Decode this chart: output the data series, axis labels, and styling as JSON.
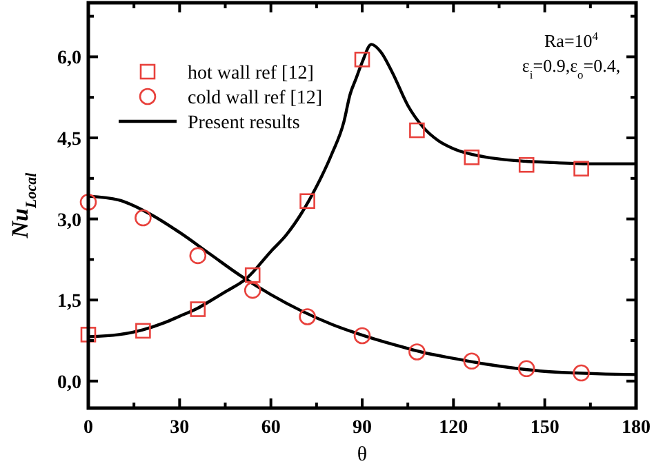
{
  "chart_data": {
    "type": "line",
    "xlabel": "θ",
    "ylabel": "Nu$_{Local}$",
    "annotations": [
      "Ra=10$^{4}$",
      "ε$_{i}$=0.9,ε$_{o}$=0.4,"
    ],
    "xlim": [
      0,
      180
    ],
    "ylim": [
      -0.5,
      7.0
    ],
    "xticks": [
      0,
      {
        "value": 15,
        "label": null
      },
      30,
      {
        "value": 45,
        "label": null
      },
      60,
      {
        "value": 75,
        "label": null
      },
      90,
      {
        "value": 105,
        "label": null
      },
      120,
      {
        "value": 135,
        "label": null
      },
      150,
      {
        "value": 165,
        "label": null
      },
      180
    ],
    "yticks": [
      {
        "value": 0,
        "label": "0,0"
      },
      {
        "value": 0.75,
        "label": null
      },
      {
        "value": 1.5,
        "label": "1,5"
      },
      {
        "value": 2.25,
        "label": null
      },
      {
        "value": 3,
        "label": "3,0"
      },
      {
        "value": 3.75,
        "label": null
      },
      {
        "value": 4.5,
        "label": "4,5"
      },
      {
        "value": 5.25,
        "label": null
      },
      {
        "value": 6,
        "label": "6,0"
      },
      {
        "value": 6.75,
        "label": null
      }
    ],
    "legend": "top left",
    "grid": false,
    "series": [
      {
        "name": "hot wall ref [12]",
        "type": "scatter",
        "marker": "square",
        "color": "#e8413c",
        "x": [
          0,
          18,
          36,
          54,
          72,
          90,
          108,
          126,
          144,
          162
        ],
        "values": [
          0.86,
          0.93,
          1.33,
          1.96,
          3.33,
          5.95,
          4.64,
          4.14,
          4.0,
          3.93
        ]
      },
      {
        "name": "cold wall ref [12]",
        "type": "scatter",
        "marker": "circle",
        "color": "#e8413c",
        "x": [
          0,
          18,
          36,
          54,
          72,
          90,
          108,
          126,
          144,
          162
        ],
        "values": [
          3.31,
          3.02,
          2.32,
          1.68,
          1.19,
          0.84,
          0.54,
          0.37,
          0.23,
          0.15
        ]
      },
      {
        "name": "Present results",
        "type": "line",
        "marker": "none",
        "line_style": "solid",
        "color": "#000000",
        "x": [
          0,
          10,
          18,
          25,
          30,
          36,
          40,
          45,
          52,
          60,
          65,
          70,
          75,
          80,
          84,
          86,
          88,
          90,
          93,
          96,
          100,
          105,
          110,
          115,
          120,
          130,
          140,
          150,
          165,
          180
        ],
        "values": [
          0.82,
          0.86,
          0.95,
          1.08,
          1.2,
          1.35,
          1.48,
          1.65,
          1.9,
          2.4,
          2.7,
          3.1,
          3.6,
          4.2,
          4.8,
          5.3,
          5.6,
          5.9,
          6.23,
          6.1,
          5.7,
          5.1,
          4.7,
          4.45,
          4.3,
          4.15,
          4.08,
          4.05,
          4.02,
          4.02
        ]
      },
      {
        "type": "line",
        "marker": "none",
        "line_style": "solid",
        "color": "#000000",
        "x": [
          0,
          10,
          20,
          30,
          40,
          50,
          60,
          70,
          80,
          90,
          100,
          110,
          120,
          130,
          140,
          150,
          160,
          170,
          180
        ],
        "values": [
          3.42,
          3.35,
          3.1,
          2.75,
          2.35,
          1.95,
          1.6,
          1.3,
          1.05,
          0.85,
          0.68,
          0.53,
          0.42,
          0.32,
          0.24,
          0.18,
          0.15,
          0.13,
          0.12
        ]
      }
    ]
  }
}
